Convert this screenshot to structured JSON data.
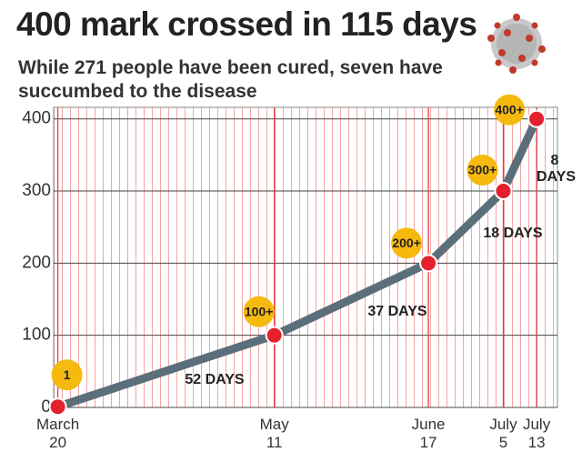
{
  "chart_data": {
    "type": "line",
    "title": "400 mark crossed in 115 days",
    "subtitle": "While 271 people have been cured, seven have succumbed to the disease",
    "x": [
      0,
      52,
      89,
      107,
      115
    ],
    "values": [
      1,
      100,
      200,
      300,
      400
    ],
    "value_labels": [
      "1",
      "100+",
      "200+",
      "300+",
      "400+"
    ],
    "annotations": [
      "52 DAYS",
      "37 DAYS",
      "18 DAYS",
      "8 DAYS"
    ],
    "xlim": [
      -1,
      120
    ],
    "xticks": [
      {
        "value": 0,
        "label": "March 20"
      },
      {
        "value": 52,
        "label": "May 11"
      },
      {
        "value": 89,
        "label": "June 17"
      },
      {
        "value": 107,
        "label": "July 5"
      },
      {
        "value": 115,
        "label": "July 13"
      }
    ],
    "ylim": [
      0,
      416
    ],
    "yticks": [
      0,
      100,
      200,
      300,
      400
    ],
    "color": "#5b6f7b",
    "marker_color": "#e3202b",
    "badge_color": "#f6b90e",
    "grid": true
  }
}
